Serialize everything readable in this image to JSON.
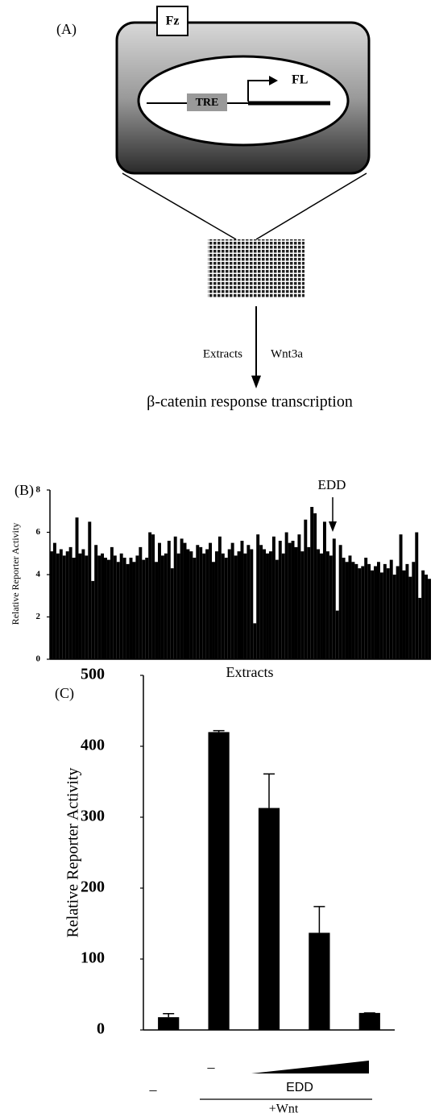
{
  "panel_a": {
    "label": "(A)",
    "receptor": "Fz",
    "element": "TRE",
    "reporter": "FL",
    "left_label": "Extracts",
    "right_label": "Wnt3a",
    "caption": "β-catenin response transcription"
  },
  "chart_data": [
    {
      "type": "bar",
      "panel": "(B)",
      "ylabel": "Relative Reporter Activity",
      "xlabel": "Extracts",
      "annotation": "EDD",
      "color": "#000000",
      "values": [
        5.1,
        5.5,
        5.0,
        5.2,
        4.9,
        5.1,
        5.3,
        4.8,
        6.7,
        5.0,
        5.2,
        4.9,
        6.5,
        3.7,
        5.4,
        4.9,
        5.0,
        4.8,
        4.7,
        5.3,
        4.9,
        4.6,
        5.0,
        4.8,
        4.5,
        4.8,
        4.6,
        4.9,
        5.3,
        4.7,
        4.8,
        6.0,
        5.9,
        4.6,
        5.5,
        4.9,
        5.0,
        5.6,
        4.3,
        5.8,
        5.0,
        5.7,
        5.5,
        5.2,
        5.1,
        4.8,
        5.4,
        5.3,
        5.0,
        5.2,
        5.5,
        4.6,
        5.1,
        5.8,
        5.0,
        4.8,
        5.2,
        5.5,
        4.9,
        5.1,
        5.6,
        5.0,
        5.4,
        5.2,
        1.7,
        5.9,
        5.4,
        5.2,
        5.0,
        5.1,
        5.8,
        4.7,
        5.6,
        5.0,
        6.0,
        5.5,
        5.6,
        5.3,
        5.9,
        5.1,
        6.6,
        5.3,
        7.2,
        6.9,
        5.2,
        5.0,
        6.5,
        5.1,
        4.9,
        5.7,
        2.3,
        5.4,
        4.8,
        4.6,
        4.9,
        4.6,
        4.5,
        4.3,
        4.4,
        4.8,
        4.5,
        4.2,
        4.4,
        4.6,
        4.1,
        4.5,
        4.3,
        4.7,
        4.0,
        4.4,
        5.9,
        4.2,
        4.5,
        3.9,
        4.6,
        6.0,
        2.9,
        4.2,
        4.0,
        3.8
      ],
      "ylim": [
        0,
        8
      ],
      "yticks": [
        0,
        2,
        4,
        6,
        8
      ]
    },
    {
      "type": "bar",
      "panel": "(C)",
      "ylabel": "Relative Reporter Activity",
      "color": "#000000",
      "values": [
        18,
        420,
        313,
        137,
        24
      ],
      "errors": [
        5,
        2,
        48,
        37,
        0
      ],
      "ylim": [
        0,
        500
      ],
      "yticks": [
        0,
        100,
        200,
        300,
        400,
        500
      ],
      "treatment_labels": [
        "–",
        "–",
        "EDD",
        "+Wnt"
      ]
    }
  ]
}
